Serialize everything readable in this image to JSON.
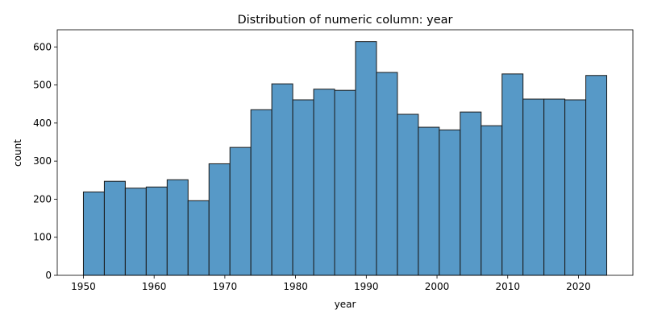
{
  "chart_data": {
    "type": "bar",
    "title": "Distribution of numeric column: year",
    "xlabel": "year",
    "ylabel": "count",
    "bar_color": "#5799c7",
    "edge_color": "#1a1a1a",
    "bin_edges": [
      1950,
      1952.96,
      1955.92,
      1958.88,
      1961.84,
      1964.8,
      1967.76,
      1970.72,
      1973.68,
      1976.64,
      1979.6,
      1982.56,
      1985.52,
      1988.48,
      1991.44,
      1994.4,
      1997.36,
      2000.32,
      2003.28,
      2006.24,
      2009.2,
      2012.16,
      2015.12,
      2018.08,
      2021.04,
      2024
    ],
    "values": [
      219,
      247,
      229,
      232,
      251,
      196,
      293,
      336,
      435,
      503,
      461,
      489,
      486,
      614,
      533,
      423,
      389,
      382,
      429,
      393,
      529,
      463,
      463,
      461,
      525
    ],
    "xlim": [
      1946.3,
      2027.7
    ],
    "ylim": [
      0,
      645
    ],
    "xticks": [
      1950,
      1960,
      1970,
      1980,
      1990,
      2000,
      2010,
      2020
    ],
    "yticks": [
      0,
      100,
      200,
      300,
      400,
      500,
      600
    ],
    "grid": false,
    "legend": "none"
  }
}
